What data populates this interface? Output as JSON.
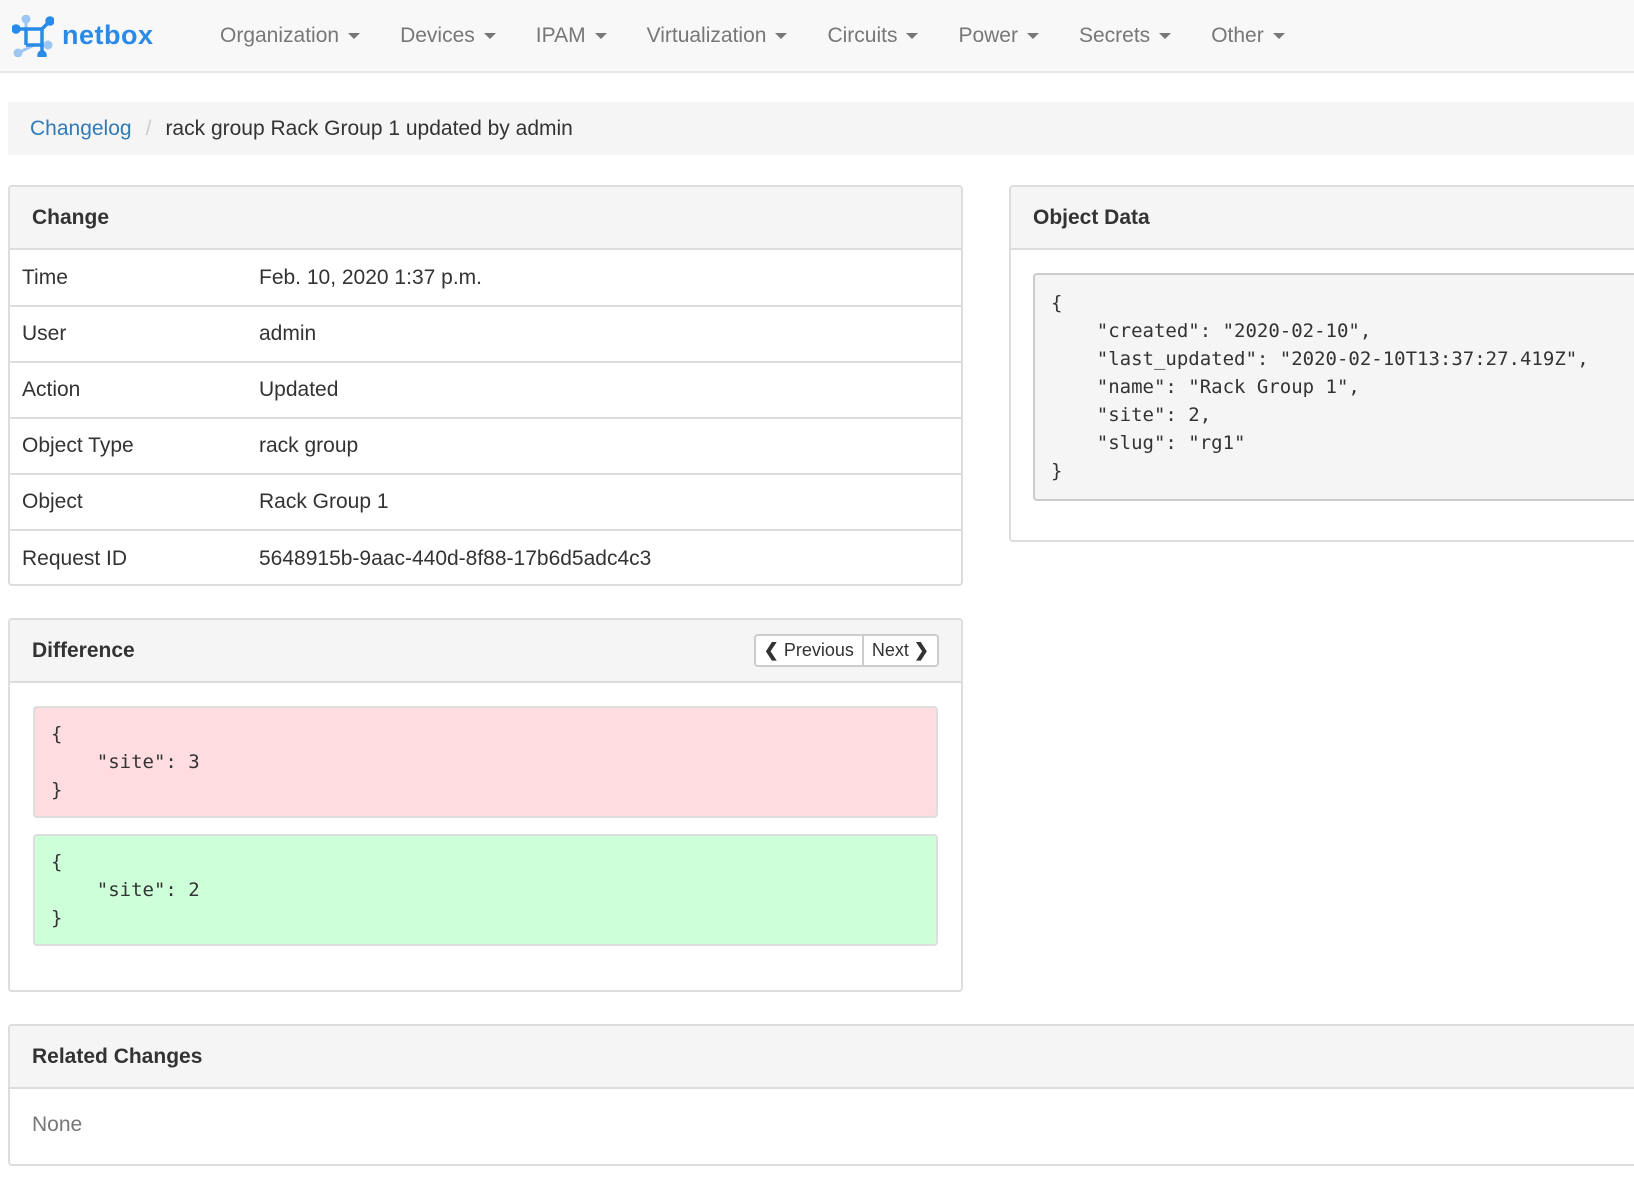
{
  "brand": {
    "name": "netbox"
  },
  "nav": [
    "Organization",
    "Devices",
    "IPAM",
    "Virtualization",
    "Circuits",
    "Power",
    "Secrets",
    "Other"
  ],
  "breadcrumb": {
    "link": "Changelog",
    "current": "rack group Rack Group 1 updated by admin"
  },
  "change": {
    "title": "Change",
    "rows": [
      {
        "label": "Time",
        "value": "Feb. 10, 2020 1:37 p.m."
      },
      {
        "label": "User",
        "value": "admin"
      },
      {
        "label": "Action",
        "value": "Updated"
      },
      {
        "label": "Object Type",
        "value": "rack group"
      },
      {
        "label": "Object",
        "value": "Rack Group 1"
      },
      {
        "label": "Request ID",
        "value": "5648915b-9aac-440d-8f88-17b6d5adc4c3"
      }
    ]
  },
  "difference": {
    "title": "Difference",
    "previous": "Previous",
    "next": "Next",
    "removed": "{\n    \"site\": 3\n}",
    "added": "{\n    \"site\": 2\n}",
    "removed_color": "#ffdce0",
    "added_color": "#cdffd8"
  },
  "object_data": {
    "title": "Object Data",
    "json": "{\n    \"created\": \"2020-02-10\",\n    \"last_updated\": \"2020-02-10T13:37:27.419Z\",\n    \"name\": \"Rack Group 1\",\n    \"site\": 2,\n    \"slug\": \"rg1\"\n}"
  },
  "related": {
    "title": "Related Changes",
    "empty": "None"
  }
}
